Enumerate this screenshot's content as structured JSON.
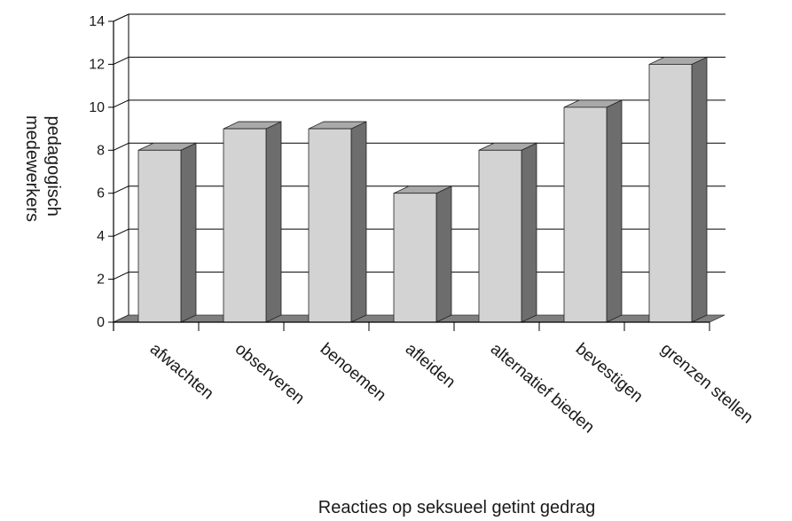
{
  "chart_data": {
    "type": "bar",
    "categories": [
      "afwachten",
      "observeren",
      "benoemen",
      "afleiden",
      "alternatief bieden",
      "bevestigen",
      "grenzen stellen"
    ],
    "values": [
      8,
      9,
      9,
      6,
      8,
      10,
      12
    ],
    "ylabel_lines": [
      "pedagogisch",
      "medewerkers"
    ],
    "xlabel": "Reacties op seksueel getint gedrag",
    "ylim": [
      0,
      14
    ],
    "yticks": [
      0,
      2,
      4,
      6,
      8,
      10,
      12,
      14
    ],
    "grid": true,
    "style": "3d",
    "colors": {
      "bar_front": "#d3d3d3",
      "bar_side": "#6d6d6d",
      "bar_top": "#a9a9a9",
      "floor": "#7f7f7f",
      "grid": "#000000"
    }
  }
}
